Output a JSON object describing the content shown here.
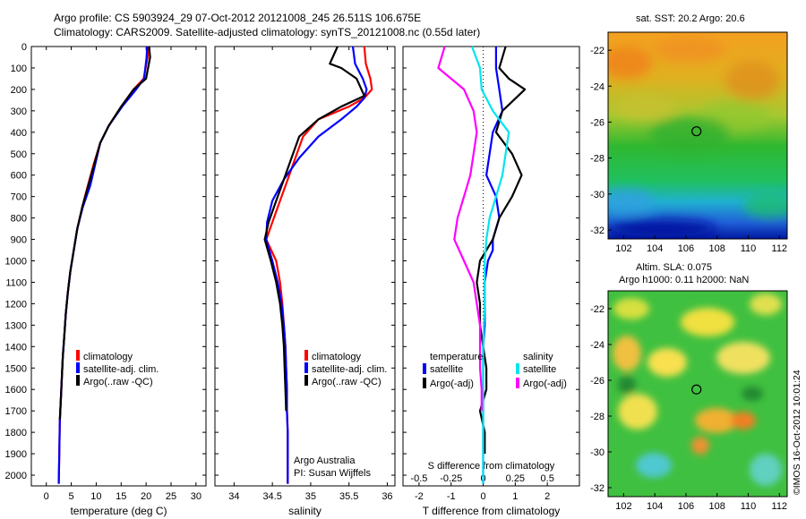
{
  "header": {
    "line1": "Argo profile: CS 5903924_29 07-Oct-2012 20121008_245 26.511S 106.675E",
    "line2": "Climatology: CARS2009. Satellite-adjusted climatology: synTS_20121008.nc (0.55d later)"
  },
  "colors": {
    "climatology": "#ff0000",
    "satellite": "#0000ff",
    "argo": "#000000",
    "sal_satellite": "#00e5ee",
    "sal_argo": "#ff00ff"
  },
  "chart_data": [
    {
      "type": "line",
      "xlabel": "temperature (deg C)",
      "ylabel": "",
      "xlim": [
        -3,
        32
      ],
      "ylim": [
        2050,
        0
      ],
      "xticks": [
        0,
        5,
        10,
        15,
        20,
        25,
        30
      ],
      "yticks": [
        0,
        100,
        200,
        300,
        400,
        500,
        600,
        700,
        800,
        900,
        1000,
        1100,
        1200,
        1300,
        1400,
        1500,
        1600,
        1700,
        1800,
        1900,
        2000
      ],
      "legend": [
        "climatology",
        "satellite-adj. clim.",
        "Argo(..raw -QC)"
      ],
      "legend_position": "lower-right",
      "series": [
        {
          "name": "climatology",
          "color": "#ff0000",
          "x": [
            20.6,
            20.3,
            19.5,
            17.5,
            15,
            12.5,
            10.8,
            9.5,
            8.3,
            7.2,
            6.2,
            5.5,
            4.8,
            4.3,
            3.9,
            3.6,
            3.3,
            3.1,
            2.9,
            2.7,
            2.6,
            2.5
          ],
          "y": [
            0,
            50,
            150,
            200,
            280,
            370,
            450,
            550,
            650,
            750,
            850,
            950,
            1050,
            1150,
            1250,
            1350,
            1450,
            1550,
            1650,
            1750,
            1900,
            2040
          ]
        },
        {
          "name": "satellite-adj. clim.",
          "color": "#0000ff",
          "x": [
            20.2,
            20.1,
            19.6,
            18,
            15.2,
            12.5,
            10.8,
            9.8,
            8.8,
            7.3,
            6.2,
            5.5,
            4.8,
            4.3,
            3.9,
            3.6,
            3.3,
            3.1,
            2.9,
            2.7,
            2.6,
            2.5
          ],
          "y": [
            0,
            50,
            150,
            200,
            280,
            370,
            450,
            550,
            650,
            750,
            850,
            950,
            1050,
            1150,
            1250,
            1350,
            1450,
            1550,
            1650,
            1750,
            1900,
            2040
          ]
        },
        {
          "name": "Argo(..raw -QC)",
          "color": "#000000",
          "x": [
            20.6,
            20.8,
            20,
            17.5,
            15,
            12.5,
            10.8,
            9.6,
            8.4,
            7.2,
            6.2,
            5.5,
            4.8,
            4.3,
            3.9,
            3.6,
            3.3,
            3.1,
            2.9,
            2.7
          ],
          "y": [
            0,
            50,
            150,
            200,
            280,
            370,
            450,
            550,
            650,
            750,
            850,
            950,
            1050,
            1150,
            1250,
            1350,
            1450,
            1550,
            1650,
            1740
          ]
        }
      ]
    },
    {
      "type": "line",
      "xlabel": "salinity",
      "ylabel": "",
      "xlim": [
        33.75,
        36.1
      ],
      "ylim": [
        2050,
        0
      ],
      "xticks": [
        34,
        34.5,
        35,
        35.5,
        36
      ],
      "legend": [
        "climatology",
        "satellite-adj. clim.",
        "Argo(..raw -QC)"
      ],
      "legend_position": "lower-right",
      "annotations": [
        "Argo Australia",
        "PI: Susan Wijffels"
      ],
      "series": [
        {
          "name": "climatology",
          "color": "#ff0000",
          "x": [
            35.7,
            35.72,
            35.78,
            35.8,
            35.7,
            35.5,
            35.1,
            34.9,
            34.8,
            34.7,
            34.6,
            34.5,
            34.42,
            34.55,
            34.6,
            34.63,
            34.65,
            34.67,
            34.68,
            34.69,
            34.69,
            34.7,
            34.7
          ],
          "y": [
            0,
            80,
            150,
            200,
            240,
            280,
            340,
            420,
            520,
            620,
            720,
            820,
            900,
            1000,
            1100,
            1200,
            1300,
            1400,
            1500,
            1600,
            1700,
            1800,
            2040
          ]
        },
        {
          "name": "satellite-adj. clim.",
          "color": "#0000ff",
          "x": [
            35.55,
            35.58,
            35.68,
            35.73,
            35.7,
            35.6,
            35.4,
            35.1,
            34.85,
            34.65,
            34.5,
            34.43,
            34.42,
            34.5,
            34.57,
            34.62,
            34.65,
            34.67,
            34.68,
            34.69,
            34.69,
            34.7,
            34.7
          ],
          "y": [
            0,
            80,
            150,
            200,
            240,
            280,
            340,
            420,
            520,
            620,
            720,
            820,
            900,
            1000,
            1100,
            1200,
            1300,
            1400,
            1500,
            1600,
            1700,
            1800,
            2040
          ]
        },
        {
          "name": "Argo(..raw -QC)",
          "color": "#000000",
          "x": [
            35.35,
            35.25,
            35.4,
            35.6,
            35.7,
            35.4,
            35.1,
            34.85,
            34.75,
            34.65,
            34.55,
            34.45,
            34.4,
            34.48,
            34.55,
            34.6,
            34.63,
            34.65,
            34.66,
            34.67,
            34.68
          ],
          "y": [
            0,
            80,
            100,
            150,
            230,
            280,
            340,
            420,
            520,
            620,
            720,
            820,
            900,
            1000,
            1100,
            1200,
            1300,
            1400,
            1500,
            1600,
            1700
          ]
        }
      ]
    },
    {
      "type": "line",
      "xlabel": "T difference from climatology",
      "xlabel2": "S difference from climatology",
      "ylabel": "",
      "xlim": [
        -2.5,
        3
      ],
      "ylim": [
        2050,
        0
      ],
      "xticks": [
        "-2",
        "-1",
        "0",
        "1",
        "2"
      ],
      "xticks_top_row": [
        "-0.5",
        "-0.25",
        "0",
        "0.25",
        "0.5"
      ],
      "legend_groups": [
        {
          "title": "temperature",
          "items": [
            "satellite",
            "Argo(-adj)"
          ]
        },
        {
          "title": "salinity",
          "items": [
            "satellite",
            "Argo(-adj)"
          ]
        }
      ],
      "legend_position": "lower-center",
      "series": [
        {
          "name": "temperature satellite",
          "color": "#0000ff",
          "x": [
            0.4,
            0.4,
            0.5,
            0.6,
            0.3,
            0.2,
            0.1,
            0.4,
            0.5,
            0.3,
            0.3,
            0.15,
            0.05,
            0.05,
            0.05,
            0.0,
            0.0,
            0.0,
            0.0,
            0.0,
            0.0,
            0.0
          ],
          "y": [
            0,
            100,
            200,
            300,
            400,
            500,
            600,
            700,
            800,
            900,
            950,
            1000,
            1100,
            1200,
            1300,
            1400,
            1500,
            1600,
            1700,
            1800,
            1900,
            2040
          ]
        },
        {
          "name": "temperature Argo(-adj)",
          "color": "#000000",
          "x": [
            0.7,
            0.5,
            0.8,
            1.3,
            0.6,
            0.4,
            0.9,
            1.2,
            0.9,
            0.5,
            0.3,
            -0.1,
            -0.2,
            -0.1,
            -0.1,
            0.0,
            0.1,
            0.1,
            -0.1,
            0.05,
            0.05
          ],
          "y": [
            0,
            100,
            150,
            200,
            300,
            400,
            500,
            600,
            700,
            800,
            900,
            1000,
            1100,
            1200,
            1300,
            1400,
            1500,
            1600,
            1700,
            1800,
            1900
          ]
        },
        {
          "name": "salinity satellite",
          "color": "#00e5ee",
          "x": [
            -0.35,
            -0.1,
            -0.05,
            0.3,
            0.8,
            0.7,
            0.6,
            0.4,
            0.2,
            0.1,
            0.05,
            0.05,
            0.05,
            0.02,
            0.0,
            0.0,
            0.0,
            0.0,
            0.0,
            0.0
          ],
          "y": [
            0,
            100,
            200,
            300,
            400,
            500,
            600,
            700,
            800,
            900,
            1000,
            1100,
            1200,
            1300,
            1400,
            1500,
            1600,
            1700,
            1800,
            2040
          ]
        },
        {
          "name": "salinity Argo(-adj)",
          "color": "#ff00ff",
          "x": [
            -1.2,
            -1.4,
            -0.6,
            -0.3,
            -0.2,
            -0.3,
            -0.4,
            -0.6,
            -0.8,
            -0.9,
            -0.6,
            -0.3,
            -0.2,
            -0.1,
            -0.1,
            -0.1,
            -0.05,
            -0.05
          ],
          "y": [
            0,
            100,
            200,
            300,
            400,
            500,
            600,
            700,
            800,
            900,
            1000,
            1100,
            1200,
            1300,
            1400,
            1500,
            1600,
            1700
          ]
        }
      ]
    },
    {
      "type": "heatmap",
      "title": "sat. SST: 20.2 Argo: 20.6",
      "xticks": [
        102,
        104,
        106,
        108,
        110,
        112
      ],
      "yticks": [
        -22,
        -24,
        -26,
        -28,
        -30,
        -32
      ],
      "xlim": [
        101,
        112.5
      ],
      "ylim": [
        -32.5,
        -21
      ],
      "marker": {
        "lon": 106.675,
        "lat": -26.511
      },
      "colormap": "jet"
    },
    {
      "type": "heatmap",
      "title": "Altim. SLA: 0.075",
      "subtitle": "Argo h1000: 0.11 h2000: NaN",
      "xticks": [
        102,
        104,
        106,
        108,
        110,
        112
      ],
      "yticks": [
        -22,
        -24,
        -26,
        -28,
        -30,
        -32
      ],
      "xlim": [
        101,
        112.5
      ],
      "ylim": [
        -32.5,
        -21
      ],
      "marker": {
        "lon": 106.675,
        "lat": -26.511
      },
      "colormap": "jet"
    }
  ],
  "footer": {
    "stamp": "©IMOS 16-Oct-2012 10:01:24"
  }
}
